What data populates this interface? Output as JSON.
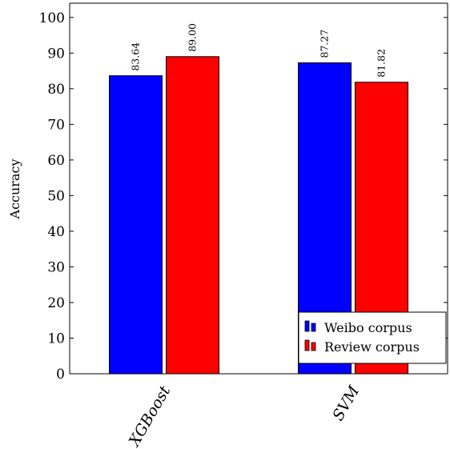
{
  "chart_data": {
    "type": "bar",
    "categories": [
      "XGBoost",
      "SVM"
    ],
    "series": [
      {
        "name": "Weibo corpus",
        "color": "#0000ff",
        "values": [
          83.64,
          87.27
        ],
        "labels": [
          "83.64",
          "87.27"
        ]
      },
      {
        "name": "Review corpus",
        "color": "#ff0000",
        "values": [
          89.0,
          81.82
        ],
        "labels": [
          "89.00",
          "81.82"
        ]
      }
    ],
    "ylabel": "Accuracy",
    "xlabel": "",
    "title": "",
    "ylim": [
      0,
      104
    ],
    "yticks": [
      0,
      10,
      20,
      30,
      40,
      50,
      60,
      70,
      80,
      90,
      100
    ],
    "legend_position": "bottom-right"
  }
}
